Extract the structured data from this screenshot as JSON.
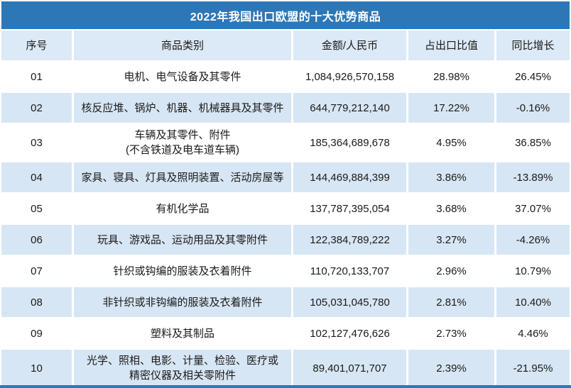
{
  "title": "2022年我国出口欧盟的十大优势商品",
  "chart_data": {
    "type": "table",
    "title": "2022年我国出口欧盟的十大优势商品",
    "columns": [
      "序号",
      "商品类别",
      "金额/人民币",
      "占出口比值",
      "同比增长"
    ],
    "rows": [
      {
        "no": "01",
        "category": "电机、电气设备及其零件",
        "amount": "1,084,926,570,158",
        "share": "28.98%",
        "yoy": "26.45%"
      },
      {
        "no": "02",
        "category": "核反应堆、锅炉、机器、机械器具及其零件",
        "amount": "644,779,212,140",
        "share": "17.22%",
        "yoy": "-0.16%"
      },
      {
        "no": "03",
        "category": "车辆及其零件、附件\n(不含铁道及电车道车辆)",
        "amount": "185,364,689,678",
        "share": "4.95%",
        "yoy": "36.85%"
      },
      {
        "no": "04",
        "category": "家具、寝具、灯具及照明装置、活动房屋等",
        "amount": "144,469,884,399",
        "share": "3.86%",
        "yoy": "-13.89%"
      },
      {
        "no": "05",
        "category": "有机化学品",
        "amount": "137,787,395,054",
        "share": "3.68%",
        "yoy": "37.07%"
      },
      {
        "no": "06",
        "category": "玩具、游戏品、运动用品及其零附件",
        "amount": "122,384,789,222",
        "share": "3.27%",
        "yoy": "-4.26%"
      },
      {
        "no": "07",
        "category": "针织或钩编的服装及衣着附件",
        "amount": "110,720,133,707",
        "share": "2.96%",
        "yoy": "10.79%"
      },
      {
        "no": "08",
        "category": "非针织或非钩编的服装及衣着附件",
        "amount": "105,031,045,780",
        "share": "2.81%",
        "yoy": "10.40%"
      },
      {
        "no": "09",
        "category": "塑料及其制品",
        "amount": "102,127,476,626",
        "share": "2.73%",
        "yoy": "4.46%"
      },
      {
        "no": "10",
        "category": "光学、照相、电影、计量、检验、医疗或\n精密仪器及相关零附件",
        "amount": "89,401,071,707",
        "share": "2.39%",
        "yoy": "-21.95%"
      }
    ]
  },
  "colors": {
    "title_bg": "#2e77b6",
    "header_bg": "#dce9f6",
    "row_alt_bg": "#d7e6f4",
    "text": "#1a1a1a",
    "title_text": "#ffffff"
  }
}
